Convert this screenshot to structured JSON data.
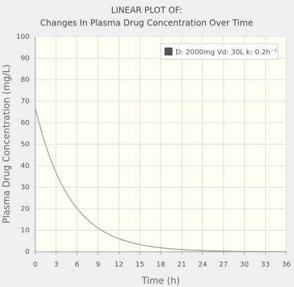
{
  "chart_data": {
    "type": "line",
    "title": "LINEAR PLOT OF:",
    "subtitle": "Changes In Plasma Drug Concentration Over Time",
    "x_label": "Time (h)",
    "y_label": "Plasma Drug Concentration (mg/L)",
    "x": [
      0,
      1,
      2,
      3,
      4,
      5,
      6,
      7,
      8,
      9,
      10,
      11,
      12,
      13,
      14,
      15,
      16,
      17,
      18,
      19,
      20,
      21,
      22,
      23,
      24,
      25,
      26,
      27,
      28,
      29,
      30,
      31,
      32,
      33,
      34,
      35,
      36
    ],
    "series": [
      {
        "name": "D: 2000mg   Vd: 30L   k: 0.2h⁻¹",
        "color": "#9a9a9a",
        "values": [
          66.67,
          54.58,
          44.69,
          36.59,
          29.96,
          24.53,
          20.08,
          16.44,
          13.46,
          11.02,
          9.02,
          7.39,
          6.05,
          4.95,
          4.05,
          3.32,
          2.72,
          2.22,
          1.82,
          1.49,
          1.22,
          1.0,
          0.82,
          0.67,
          0.55,
          0.45,
          0.37,
          0.3,
          0.25,
          0.2,
          0.17,
          0.14,
          0.11,
          0.09,
          0.07,
          0.06,
          0.05
        ]
      }
    ],
    "xlim": [
      0,
      36
    ],
    "xticks": [
      0,
      3,
      6,
      9,
      12,
      15,
      18,
      21,
      24,
      27,
      30,
      33,
      36
    ],
    "ylim": [
      0,
      100
    ],
    "yticks": [
      0,
      10,
      20,
      30,
      40,
      50,
      60,
      70,
      80,
      90,
      100
    ],
    "grid": true,
    "legend": "top-right"
  }
}
